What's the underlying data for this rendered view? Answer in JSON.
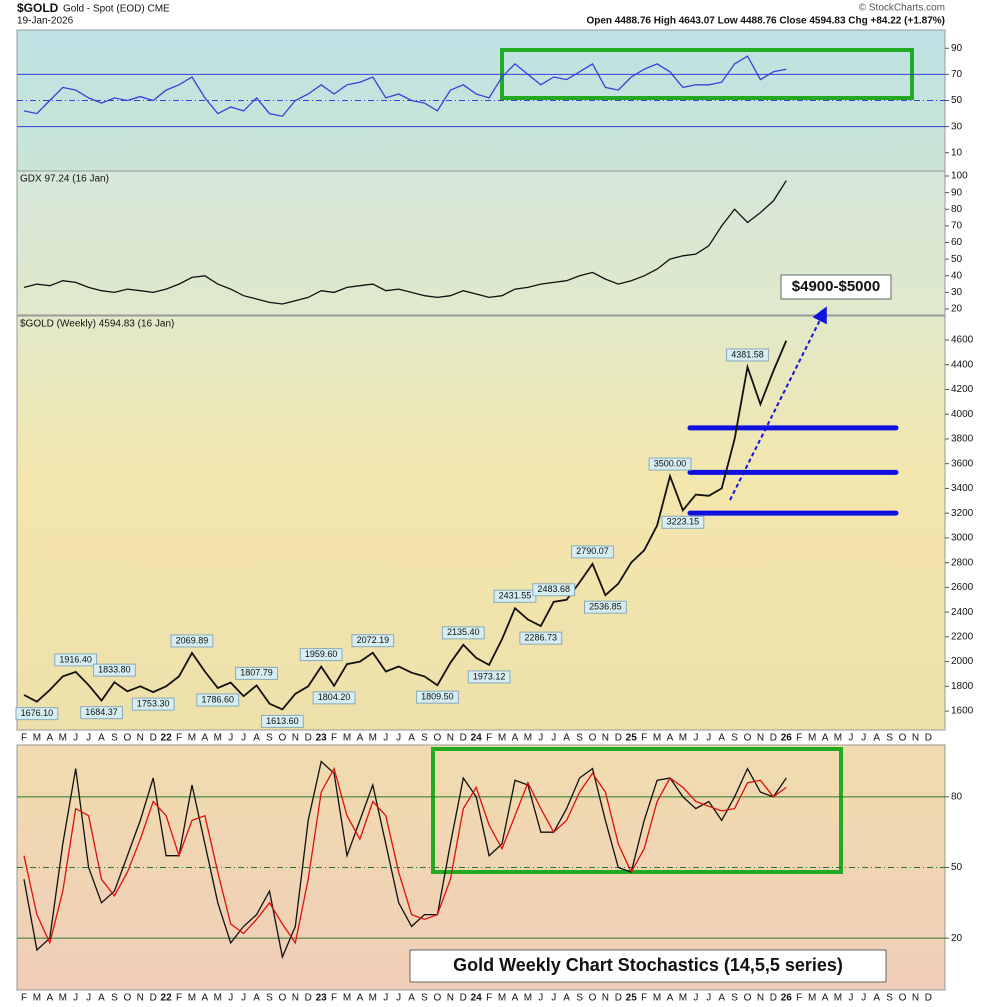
{
  "header": {
    "symbol": "$GOLD",
    "name": "Gold - Spot (EOD) CME",
    "date": "19-Jan-2026",
    "quote": "Open 4488.76  High 4643.07  Low 4488.76  Close 4594.83  Chg +84.22 (+1.87%)",
    "credit": "© StockCharts.com"
  },
  "chart_data": [
    {
      "type": "line",
      "ylim": [
        -4,
        104
      ],
      "yticks": [
        10,
        30,
        50,
        70,
        90
      ],
      "hlines": [
        30,
        50,
        70
      ],
      "hline_styles": [
        "solid",
        "dashdot",
        "solid"
      ],
      "series": [
        {
          "color": "#3b3fd6",
          "values": [
            42,
            40,
            50,
            60,
            58,
            52,
            48,
            52,
            50,
            53,
            50,
            58,
            62,
            68,
            52,
            40,
            45,
            42,
            52,
            40,
            38,
            50,
            55,
            62,
            55,
            62,
            64,
            68,
            52,
            55,
            50,
            48,
            42,
            58,
            62,
            55,
            52,
            68,
            78,
            70,
            62,
            68,
            66,
            72,
            78,
            60,
            58,
            68,
            74,
            78,
            72,
            60,
            62,
            62,
            64,
            78,
            84,
            66,
            72,
            74,
            null,
            null,
            null,
            null,
            null,
            null,
            null,
            null,
            null,
            null,
            null
          ]
        }
      ]
    },
    {
      "type": "line",
      "title": "GDX 97.24 (16 Jan)",
      "ylim": [
        16.4,
        103
      ],
      "yticks": [
        20,
        30,
        40,
        50,
        60,
        70,
        80,
        90,
        100
      ],
      "series": [
        {
          "color": "#111111",
          "values": [
            33,
            35,
            34,
            37,
            36,
            33,
            31,
            30,
            32,
            31,
            30,
            32,
            35,
            39,
            40,
            35,
            32,
            28,
            26,
            24,
            23,
            25,
            27,
            31,
            30,
            33,
            34,
            35,
            31,
            32,
            30,
            28,
            27,
            28,
            31,
            29,
            27,
            28,
            32,
            33,
            35,
            36,
            37,
            40,
            42,
            38,
            35,
            37,
            40,
            44,
            50,
            52,
            53,
            58,
            70,
            80,
            72,
            78,
            85,
            97.24,
            null,
            null,
            null,
            null,
            null,
            null,
            null,
            null,
            null,
            null,
            null
          ]
        }
      ]
    },
    {
      "type": "line",
      "title": "$GOLD (Weekly) 4594.83 (16 Jan)",
      "ylim": [
        1447,
        4794
      ],
      "yticks": [
        1600,
        1800,
        2000,
        2200,
        2400,
        2600,
        2800,
        3000,
        3200,
        3400,
        3600,
        3800,
        4000,
        4200,
        4400,
        4600
      ],
      "target_label": "$4900-$5000",
      "levels": [
        3890,
        3530,
        3200
      ],
      "level_color": "#1010e0",
      "categories": [
        "F",
        "M",
        "A",
        "M",
        "J",
        "J",
        "A",
        "S",
        "O",
        "N",
        "D",
        "22",
        "F",
        "M",
        "A",
        "M",
        "J",
        "J",
        "A",
        "S",
        "O",
        "N",
        "D",
        "23",
        "F",
        "M",
        "A",
        "M",
        "J",
        "J",
        "A",
        "S",
        "O",
        "N",
        "D",
        "24",
        "F",
        "M",
        "A",
        "M",
        "J",
        "J",
        "A",
        "S",
        "O",
        "N",
        "D",
        "25",
        "F",
        "M",
        "A",
        "M",
        "J",
        "J",
        "A",
        "S",
        "O",
        "N",
        "D",
        "26",
        "F",
        "M",
        "A",
        "M",
        "J",
        "J",
        "A",
        "S",
        "O",
        "N",
        "D"
      ],
      "series": [
        {
          "color": "#111111",
          "values": [
            1730,
            1676.1,
            1770,
            1880,
            1916.4,
            1810,
            1684.37,
            1833.8,
            1760,
            1800,
            1753.3,
            1800,
            1880,
            2069.89,
            1920,
            1786.6,
            1830,
            1720,
            1807.79,
            1660,
            1613.6,
            1740,
            1800,
            1959.6,
            1804.2,
            1980,
            2000,
            2072.19,
            1920,
            1960,
            1910,
            1880,
            1809.5,
            1990,
            2135.4,
            2030,
            1973.12,
            2180,
            2431.55,
            2340,
            2286.73,
            2483.68,
            2500,
            2640,
            2790.07,
            2536.85,
            2630,
            2800,
            2900,
            3100,
            3500,
            3223.15,
            3350,
            3340,
            3400,
            3800,
            4381.58,
            4080,
            4350,
            4594.83,
            null,
            null,
            null,
            null,
            null,
            null,
            null,
            null,
            null,
            null,
            null
          ],
          "value_labels": [
            null,
            "1676.10",
            null,
            null,
            "1916.40",
            null,
            "1684.37",
            "1833.80",
            null,
            null,
            "1753.30",
            null,
            null,
            "2069.89",
            null,
            "1786.60",
            null,
            null,
            "1807.79",
            null,
            "1613.60",
            null,
            null,
            "1959.60",
            "1804.20",
            null,
            null,
            "2072.19",
            null,
            null,
            null,
            null,
            "1809.50",
            null,
            "2135.40",
            null,
            "1973.12",
            null,
            "2431.55",
            null,
            "2286.73",
            "2483.68",
            null,
            null,
            "2790.07",
            "2536.85",
            null,
            null,
            null,
            null,
            "3500.00",
            "3223.15",
            null,
            null,
            null,
            null,
            "4381.58",
            null,
            null,
            null,
            null,
            null,
            null,
            null,
            null,
            null,
            null,
            null,
            null,
            null,
            null
          ]
        }
      ]
    },
    {
      "type": "line",
      "ylim": [
        -2,
        102
      ],
      "yticks": [
        20,
        50,
        80
      ],
      "hlines": [
        20,
        50,
        80
      ],
      "hline_styles": [
        "solid",
        "dashdot",
        "solid"
      ],
      "caption": "Gold Weekly Chart Stochastics (14,5,5 series)",
      "categories": [
        "F",
        "M",
        "A",
        "M",
        "J",
        "J",
        "A",
        "S",
        "O",
        "N",
        "D",
        "22",
        "F",
        "M",
        "A",
        "M",
        "J",
        "J",
        "A",
        "S",
        "O",
        "N",
        "D",
        "23",
        "F",
        "M",
        "A",
        "M",
        "J",
        "J",
        "A",
        "S",
        "O",
        "N",
        "D",
        "24",
        "F",
        "M",
        "A",
        "M",
        "J",
        "J",
        "A",
        "S",
        "O",
        "N",
        "D",
        "25",
        "F",
        "M",
        "A",
        "M",
        "J",
        "J",
        "A",
        "S",
        "O",
        "N",
        "D",
        "26",
        "F",
        "M",
        "A",
        "M",
        "J",
        "J",
        "A",
        "S",
        "O",
        "N",
        "D"
      ],
      "series": [
        {
          "color": "#111111",
          "values": [
            45,
            15,
            20,
            60,
            92,
            50,
            35,
            40,
            55,
            70,
            88,
            55,
            55,
            85,
            60,
            35,
            18,
            25,
            30,
            40,
            12,
            25,
            70,
            95,
            90,
            55,
            70,
            85,
            60,
            35,
            25,
            30,
            30,
            60,
            88,
            80,
            55,
            60,
            87,
            85,
            65,
            65,
            75,
            88,
            92,
            70,
            50,
            48,
            70,
            87,
            88,
            80,
            75,
            78,
            70,
            80,
            92,
            82,
            80,
            88,
            null,
            null,
            null,
            null,
            null,
            null,
            null,
            null,
            null,
            null,
            null
          ]
        },
        {
          "color": "#e01010",
          "values": [
            55,
            30,
            18,
            40,
            75,
            72,
            45,
            38,
            48,
            62,
            78,
            72,
            55,
            70,
            72,
            48,
            26,
            22,
            28,
            35,
            26,
            18,
            45,
            82,
            92,
            72,
            62,
            78,
            72,
            48,
            30,
            28,
            30,
            45,
            75,
            84,
            68,
            58,
            72,
            86,
            75,
            65,
            70,
            82,
            90,
            82,
            60,
            48,
            58,
            78,
            88,
            84,
            78,
            76,
            74,
            75,
            86,
            87,
            80,
            84,
            null,
            null,
            null,
            null,
            null,
            null,
            null,
            null,
            null,
            null,
            null
          ]
        }
      ]
    }
  ]
}
